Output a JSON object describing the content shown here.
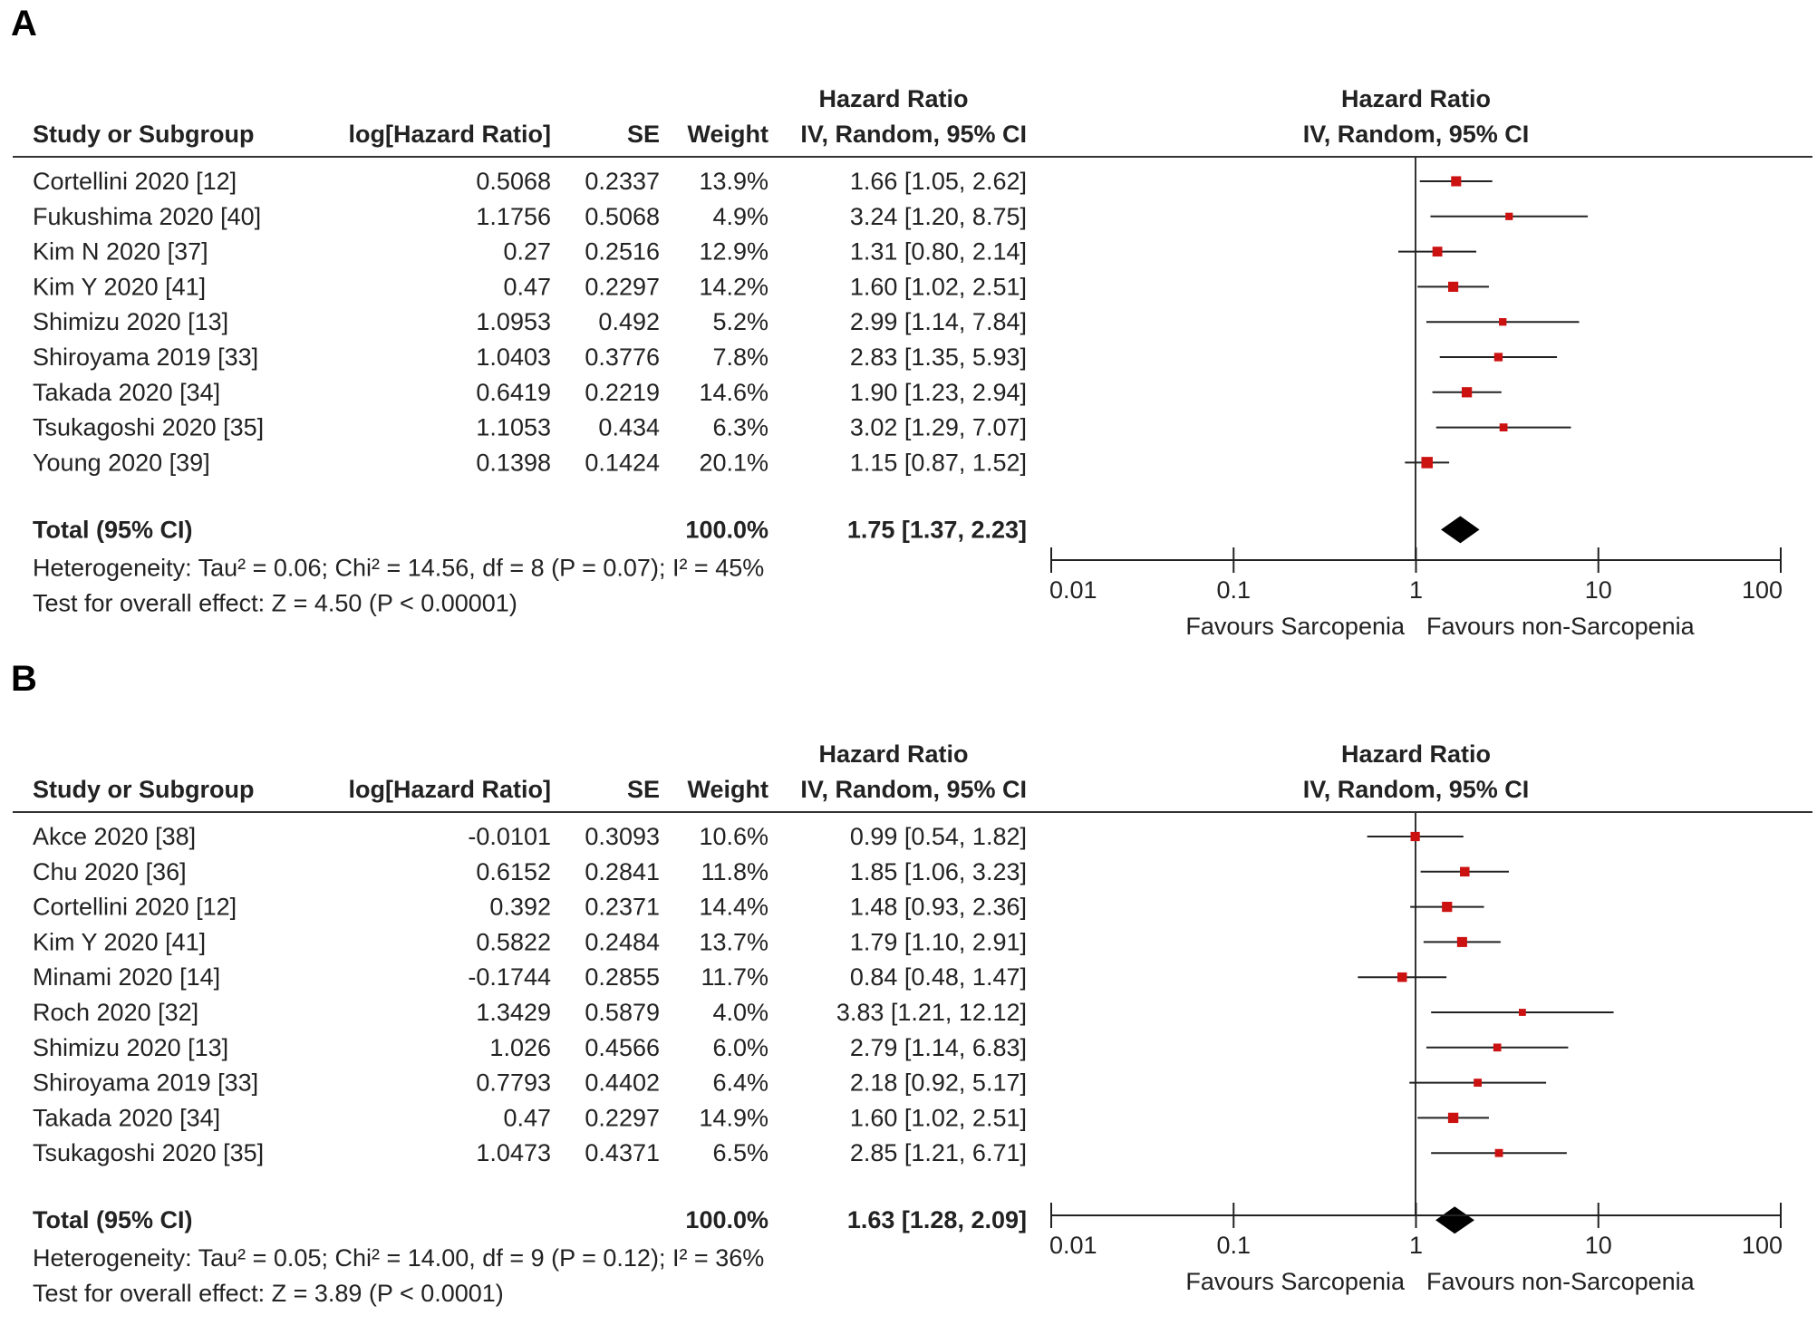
{
  "panels": [
    {
      "label": "A",
      "chart_data": {
        "type": "forest",
        "measure": "Hazard Ratio",
        "method": "IV, Random, 95% CI",
        "columns": {
          "study": "Study or Subgroup",
          "log": "log[Hazard Ratio]",
          "se": "SE",
          "weight": "Weight",
          "hr_top": "Hazard Ratio",
          "hr_sub": "IV, Random, 95% CI"
        },
        "studies": [
          {
            "name": "Cortellini 2020 [12]",
            "log": "0.5068",
            "se": "0.2337",
            "weight": "13.9%",
            "ci": "1.66 [1.05, 2.62]",
            "hr": 1.66,
            "lo": 1.05,
            "hi": 2.62,
            "w": 13.9
          },
          {
            "name": "Fukushima 2020 [40]",
            "log": "1.1756",
            "se": "0.5068",
            "weight": "4.9%",
            "ci": "3.24 [1.20, 8.75]",
            "hr": 3.24,
            "lo": 1.2,
            "hi": 8.75,
            "w": 4.9
          },
          {
            "name": "Kim N 2020 [37]",
            "log": "0.27",
            "se": "0.2516",
            "weight": "12.9%",
            "ci": "1.31 [0.80, 2.14]",
            "hr": 1.31,
            "lo": 0.8,
            "hi": 2.14,
            "w": 12.9
          },
          {
            "name": "Kim Y 2020 [41]",
            "log": "0.47",
            "se": "0.2297",
            "weight": "14.2%",
            "ci": "1.60 [1.02, 2.51]",
            "hr": 1.6,
            "lo": 1.02,
            "hi": 2.51,
            "w": 14.2
          },
          {
            "name": "Shimizu 2020 [13]",
            "log": "1.0953",
            "se": "0.492",
            "weight": "5.2%",
            "ci": "2.99 [1.14, 7.84]",
            "hr": 2.99,
            "lo": 1.14,
            "hi": 7.84,
            "w": 5.2
          },
          {
            "name": "Shiroyama 2019 [33]",
            "log": "1.0403",
            "se": "0.3776",
            "weight": "7.8%",
            "ci": "2.83 [1.35, 5.93]",
            "hr": 2.83,
            "lo": 1.35,
            "hi": 5.93,
            "w": 7.8
          },
          {
            "name": "Takada 2020 [34]",
            "log": "0.6419",
            "se": "0.2219",
            "weight": "14.6%",
            "ci": "1.90 [1.23, 2.94]",
            "hr": 1.9,
            "lo": 1.23,
            "hi": 2.94,
            "w": 14.6
          },
          {
            "name": "Tsukagoshi 2020 [35]",
            "log": "1.1053",
            "se": "0.434",
            "weight": "6.3%",
            "ci": "3.02 [1.29, 7.07]",
            "hr": 3.02,
            "lo": 1.29,
            "hi": 7.07,
            "w": 6.3
          },
          {
            "name": "Young 2020 [39]",
            "log": "0.1398",
            "se": "0.1424",
            "weight": "20.1%",
            "ci": "1.15 [0.87, 1.52]",
            "hr": 1.15,
            "lo": 0.87,
            "hi": 1.52,
            "w": 20.1
          }
        ],
        "total": {
          "label": "Total (95% CI)",
          "weight": "100.0%",
          "ci": "1.75 [1.37, 2.23]",
          "hr": 1.75,
          "lo": 1.37,
          "hi": 2.23
        },
        "heterogeneity": "Heterogeneity: Tau² = 0.06; Chi² = 14.56, df = 8 (P = 0.07); I² = 45%",
        "overall": "Test for overall effect: Z = 4.50 (P < 0.00001)",
        "axis": {
          "scale": "log",
          "range": [
            0.01,
            100
          ],
          "ticks": [
            0.01,
            0.1,
            1,
            10,
            100
          ],
          "tick_labels": [
            "0.01",
            "0.1",
            "1",
            "10",
            "100"
          ]
        },
        "favours_left": "Favours Sarcopenia",
        "favours_right": "Favours non-Sarcopenia",
        "colors": {
          "marker": "#cc1111",
          "line": "#222222",
          "diamond": "#000000"
        }
      }
    },
    {
      "label": "B",
      "chart_data": {
        "type": "forest",
        "measure": "Hazard Ratio",
        "method": "IV, Random, 95% CI",
        "columns": {
          "study": "Study or Subgroup",
          "log": "log[Hazard Ratio]",
          "se": "SE",
          "weight": "Weight",
          "hr_top": "Hazard Ratio",
          "hr_sub": "IV, Random, 95% CI"
        },
        "studies": [
          {
            "name": "Akce 2020 [38]",
            "log": "-0.0101",
            "se": "0.3093",
            "weight": "10.6%",
            "ci": "0.99 [0.54, 1.82]",
            "hr": 0.99,
            "lo": 0.54,
            "hi": 1.82,
            "w": 10.6
          },
          {
            "name": "Chu 2020 [36]",
            "log": "0.6152",
            "se": "0.2841",
            "weight": "11.8%",
            "ci": "1.85 [1.06, 3.23]",
            "hr": 1.85,
            "lo": 1.06,
            "hi": 3.23,
            "w": 11.8
          },
          {
            "name": "Cortellini 2020 [12]",
            "log": "0.392",
            "se": "0.2371",
            "weight": "14.4%",
            "ci": "1.48 [0.93, 2.36]",
            "hr": 1.48,
            "lo": 0.93,
            "hi": 2.36,
            "w": 14.4
          },
          {
            "name": "Kim Y 2020 [41]",
            "log": "0.5822",
            "se": "0.2484",
            "weight": "13.7%",
            "ci": "1.79 [1.10, 2.91]",
            "hr": 1.79,
            "lo": 1.1,
            "hi": 2.91,
            "w": 13.7
          },
          {
            "name": "Minami 2020 [14]",
            "log": "-0.1744",
            "se": "0.2855",
            "weight": "11.7%",
            "ci": "0.84 [0.48, 1.47]",
            "hr": 0.84,
            "lo": 0.48,
            "hi": 1.47,
            "w": 11.7
          },
          {
            "name": "Roch 2020 [32]",
            "log": "1.3429",
            "se": "0.5879",
            "weight": "4.0%",
            "ci": "3.83 [1.21, 12.12]",
            "hr": 3.83,
            "lo": 1.21,
            "hi": 12.12,
            "w": 4.0
          },
          {
            "name": "Shimizu 2020 [13]",
            "log": "1.026",
            "se": "0.4566",
            "weight": "6.0%",
            "ci": "2.79 [1.14, 6.83]",
            "hr": 2.79,
            "lo": 1.14,
            "hi": 6.83,
            "w": 6.0
          },
          {
            "name": "Shiroyama 2019 [33]",
            "log": "0.7793",
            "se": "0.4402",
            "weight": "6.4%",
            "ci": "2.18 [0.92, 5.17]",
            "hr": 2.18,
            "lo": 0.92,
            "hi": 5.17,
            "w": 6.4
          },
          {
            "name": "Takada 2020 [34]",
            "log": "0.47",
            "se": "0.2297",
            "weight": "14.9%",
            "ci": "1.60 [1.02, 2.51]",
            "hr": 1.6,
            "lo": 1.02,
            "hi": 2.51,
            "w": 14.9
          },
          {
            "name": "Tsukagoshi 2020 [35]",
            "log": "1.0473",
            "se": "0.4371",
            "weight": "6.5%",
            "ci": "2.85 [1.21, 6.71]",
            "hr": 2.85,
            "lo": 1.21,
            "hi": 6.71,
            "w": 6.5
          }
        ],
        "total": {
          "label": "Total (95% CI)",
          "weight": "100.0%",
          "ci": "1.63 [1.28, 2.09]",
          "hr": 1.63,
          "lo": 1.28,
          "hi": 2.09
        },
        "heterogeneity": "Heterogeneity: Tau² = 0.05; Chi² = 14.00, df = 9 (P = 0.12); I² = 36%",
        "overall": "Test for overall effect: Z = 3.89 (P < 0.0001)",
        "axis": {
          "scale": "log",
          "range": [
            0.01,
            100
          ],
          "ticks": [
            0.01,
            0.1,
            1,
            10,
            100
          ],
          "tick_labels": [
            "0.01",
            "0.1",
            "1",
            "10",
            "100"
          ]
        },
        "favours_left": "Favours Sarcopenia",
        "favours_right": "Favours non-Sarcopenia",
        "colors": {
          "marker": "#cc1111",
          "line": "#222222",
          "diamond": "#000000"
        }
      }
    }
  ]
}
